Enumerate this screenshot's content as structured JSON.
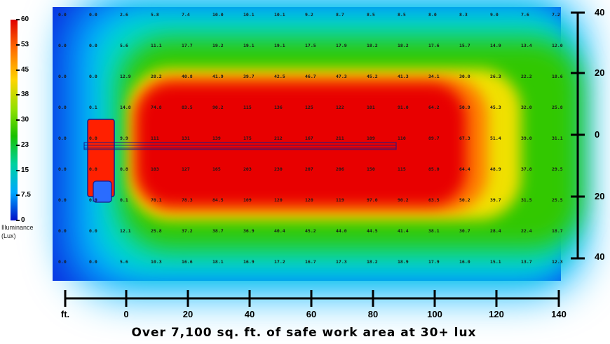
{
  "chart_data": {
    "type": "heatmap",
    "title": "",
    "caption": "Over 7,100 sq. ft. of safe work area at 30+ lux",
    "xlabel": "ft.",
    "x_ticks": [
      "0",
      "20",
      "40",
      "60",
      "80",
      "100",
      "120",
      "140"
    ],
    "y_ticks": [
      "40",
      "20",
      "0",
      "20",
      "40"
    ],
    "legend": {
      "title_line1": "Illuminance",
      "title_line2": "(Lux)",
      "ticks": [
        "60",
        "53",
        "45",
        "38",
        "30",
        "23",
        "15",
        "7.5",
        "0"
      ]
    },
    "colors": {
      "hot": "#e60000",
      "warm": "#ff8c00",
      "mid": "#ffe600",
      "green": "#1ec000",
      "cool": "#00d7d7",
      "cold": "#0020d0"
    },
    "grid_values": [
      [
        "0.0",
        "0.0",
        "2.6",
        "5.8",
        "7.4",
        "10.0",
        "10.1",
        "10.1",
        "9.2",
        "8.7",
        "8.5",
        "8.5",
        "8.0",
        "8.3",
        "9.0",
        "7.6",
        "7.2"
      ],
      [
        "0.0",
        "0.0",
        "5.6",
        "11.1",
        "17.7",
        "19.2",
        "19.1",
        "19.1",
        "17.5",
        "17.9",
        "18.2",
        "18.2",
        "17.6",
        "15.7",
        "14.9",
        "13.4",
        "12.0"
      ],
      [
        "0.0",
        "0.0",
        "12.9",
        "28.2",
        "40.8",
        "41.9",
        "39.7",
        "42.5",
        "46.7",
        "47.3",
        "45.2",
        "41.3",
        "34.1",
        "30.0",
        "26.3",
        "22.2",
        "18.6"
      ],
      [
        "0.0",
        "0.1",
        "14.8",
        "74.8",
        "83.5",
        "90.2",
        "115",
        "136",
        "125",
        "122",
        "101",
        "91.0",
        "64.2",
        "50.9",
        "45.3",
        "32.0",
        "25.8"
      ],
      [
        "0.0",
        "0.0",
        "9.9",
        "111",
        "131",
        "139",
        "175",
        "212",
        "167",
        "211",
        "109",
        "110",
        "89.7",
        "67.3",
        "51.4",
        "39.0",
        "31.1"
      ],
      [
        "0.0",
        "0.0",
        "0.8",
        "103",
        "127",
        "165",
        "203",
        "230",
        "207",
        "206",
        "150",
        "115",
        "85.0",
        "64.4",
        "48.9",
        "37.8",
        "29.5"
      ],
      [
        "0.0",
        "0.0",
        "0.1",
        "70.1",
        "78.3",
        "84.5",
        "109",
        "120",
        "120",
        "119",
        "97.0",
        "90.2",
        "63.5",
        "50.2",
        "39.7",
        "31.5",
        "25.5"
      ],
      [
        "0.0",
        "0.0",
        "12.1",
        "25.8",
        "37.2",
        "38.7",
        "36.9",
        "40.4",
        "45.2",
        "44.0",
        "44.5",
        "41.4",
        "38.1",
        "30.7",
        "28.4",
        "22.4",
        "18.7"
      ],
      [
        "0.0",
        "0.0",
        "5.6",
        "10.3",
        "16.6",
        "18.1",
        "16.9",
        "17.2",
        "16.7",
        "17.3",
        "18.2",
        "18.9",
        "17.9",
        "16.0",
        "15.1",
        "13.7",
        "12.3"
      ]
    ]
  }
}
